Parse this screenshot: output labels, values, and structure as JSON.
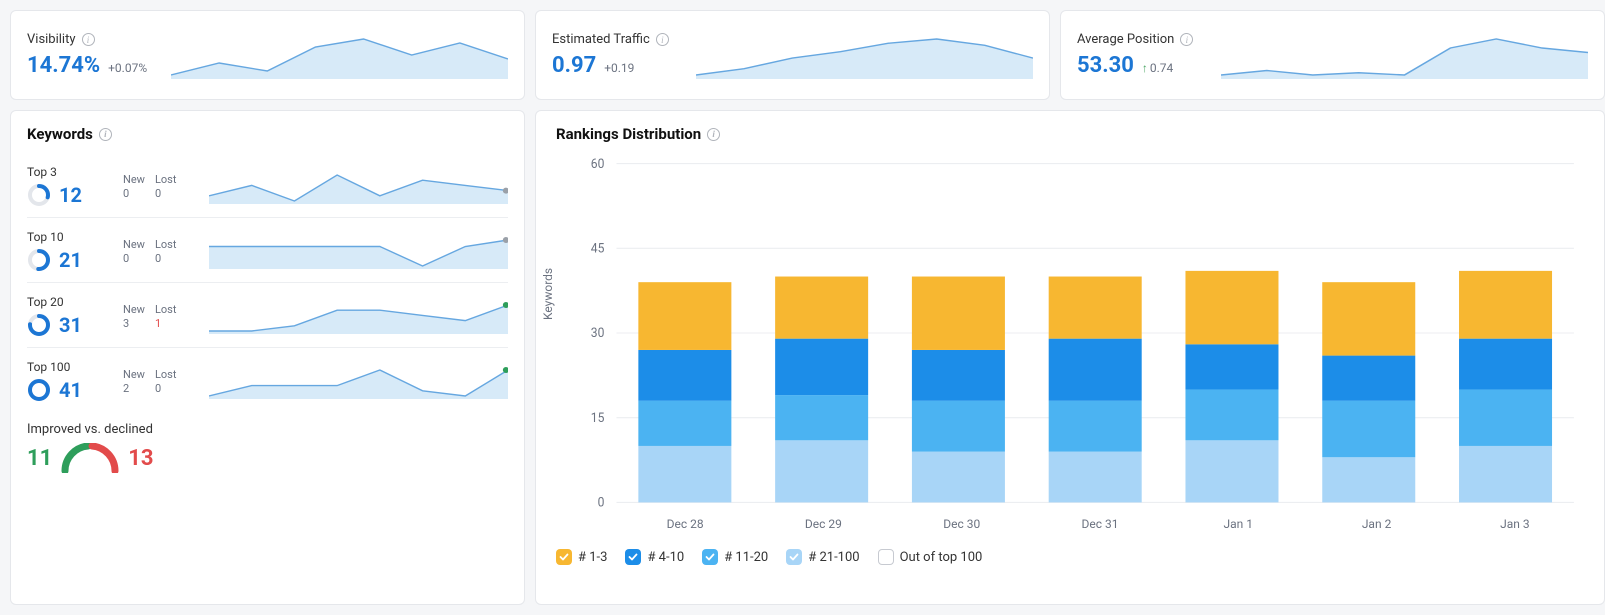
{
  "colors": {
    "accent": "#1c76d4",
    "area_fill": "#d7eaf8",
    "area_stroke": "#66a7e0",
    "grid": "#eceef1",
    "text_muted": "#6b7280",
    "green": "#2e9e5b",
    "red": "#e24b4b",
    "series": {
      "s1_3": "#f7b731",
      "s4_10": "#1c8de8",
      "s11_20": "#4bb3f2",
      "s21_100": "#a8d5f7",
      "out": "#ffffff"
    }
  },
  "top_cards": {
    "visibility": {
      "title": "Visibility",
      "value": "14.74%",
      "delta": "+0.07%",
      "spark": [
        14.5,
        14.8,
        14.6,
        15.2,
        15.4,
        15.0,
        15.3,
        14.9
      ]
    },
    "traffic": {
      "title": "Estimated Traffic",
      "value": "0.97",
      "delta": "+0.19",
      "spark": [
        0.82,
        0.85,
        0.9,
        0.93,
        0.97,
        0.99,
        0.96,
        0.9
      ]
    },
    "position": {
      "title": "Average Position",
      "value": "53.30",
      "delta": "0.74",
      "delta_arrow": "↑",
      "spark": [
        50,
        51,
        50,
        50.5,
        50,
        56,
        58,
        56,
        55
      ]
    }
  },
  "keywords": {
    "title": "Keywords",
    "rows": [
      {
        "label": "Top 3",
        "value": 12,
        "donut_pct": 0.29,
        "new": 0,
        "lost": 0,
        "lost_red": false,
        "spark": [
          10,
          12,
          9,
          14,
          10,
          13,
          12,
          11
        ],
        "dot": "#9aa0a8"
      },
      {
        "label": "Top 10",
        "value": 21,
        "donut_pct": 0.51,
        "new": 0,
        "lost": 0,
        "lost_red": false,
        "spark": [
          21,
          21,
          21,
          21,
          21,
          18,
          21,
          22
        ],
        "dot": "#9aa0a8"
      },
      {
        "label": "Top 20",
        "value": 31,
        "donut_pct": 0.76,
        "new": 3,
        "lost": 1,
        "lost_red": true,
        "spark": [
          26,
          26,
          27,
          30,
          30,
          29,
          28,
          31
        ],
        "dot": "#2e9e5b"
      },
      {
        "label": "Top 100",
        "value": 41,
        "donut_pct": 1.0,
        "new": 2,
        "lost": 0,
        "lost_red": false,
        "spark": [
          36,
          38,
          38,
          38,
          41,
          37,
          36,
          41
        ],
        "dot": "#2e9e5b"
      }
    ],
    "improved": {
      "label": "Improved vs. declined",
      "up": 11,
      "down": 13
    }
  },
  "rankings": {
    "title": "Rankings Distribution",
    "y_label": "Keywords",
    "y_max": 60,
    "y_ticks": [
      0,
      15,
      30,
      45,
      60
    ],
    "x_labels": [
      "Dec 28",
      "Dec 29",
      "Dec 30",
      "Dec 31",
      "Jan 1",
      "Jan 2",
      "Jan 3"
    ],
    "legend": [
      {
        "key": "s1_3",
        "label": "# 1-3",
        "checked": true
      },
      {
        "key": "s4_10",
        "label": "# 4-10",
        "checked": true
      },
      {
        "key": "s11_20",
        "label": "# 11-20",
        "checked": true
      },
      {
        "key": "s21_100",
        "label": "# 21-100",
        "checked": true
      },
      {
        "key": "out",
        "label": "Out of top 100",
        "checked": false
      }
    ],
    "bars": [
      {
        "s21_100": 10,
        "s11_20": 8,
        "s4_10": 9,
        "s1_3": 12
      },
      {
        "s21_100": 11,
        "s11_20": 8,
        "s4_10": 10,
        "s1_3": 11
      },
      {
        "s21_100": 9,
        "s11_20": 9,
        "s4_10": 9,
        "s1_3": 13
      },
      {
        "s21_100": 9,
        "s11_20": 9,
        "s4_10": 11,
        "s1_3": 11
      },
      {
        "s21_100": 11,
        "s11_20": 9,
        "s4_10": 8,
        "s1_3": 13
      },
      {
        "s21_100": 8,
        "s11_20": 10,
        "s4_10": 8,
        "s1_3": 13
      },
      {
        "s21_100": 10,
        "s11_20": 10,
        "s4_10": 9,
        "s1_3": 12
      }
    ]
  }
}
